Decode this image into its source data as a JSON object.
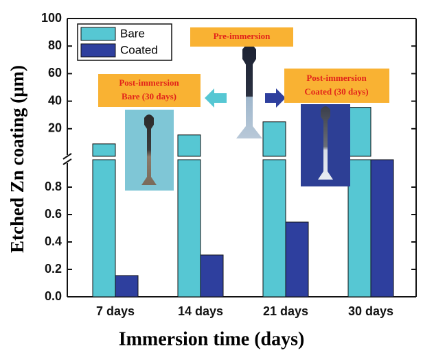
{
  "chart_data": {
    "type": "bar",
    "x_label": "Immersion time (days)",
    "y_label": "Etched Zn coating (μm)",
    "categories": [
      "7 days",
      "14 days",
      "21 days",
      "30 days"
    ],
    "series": [
      {
        "name": "Bare",
        "color": "#56c7d3",
        "values": [
          9,
          15.5,
          25,
          35.5
        ]
      },
      {
        "name": "Coated",
        "color": "#2e3f9e",
        "values": [
          0.155,
          0.305,
          0.545,
          1.0
        ]
      }
    ],
    "segments": [
      {
        "ylim": [
          0,
          1
        ],
        "yticks": [
          {
            "value": 0,
            "label": "0.0"
          },
          0.2,
          0.4,
          0.6,
          0.8
        ]
      },
      {
        "ylim": [
          0,
          100
        ],
        "yticks": [
          20,
          40,
          60,
          80,
          100
        ]
      }
    ],
    "legend": "upper left",
    "annotations": {
      "pre": [
        "Pre-immersion"
      ],
      "bare": [
        "Post-immersion",
        "Bare (30 days)"
      ],
      "coated": [
        "Post-immersion",
        "Coated (30 days)"
      ]
    }
  }
}
